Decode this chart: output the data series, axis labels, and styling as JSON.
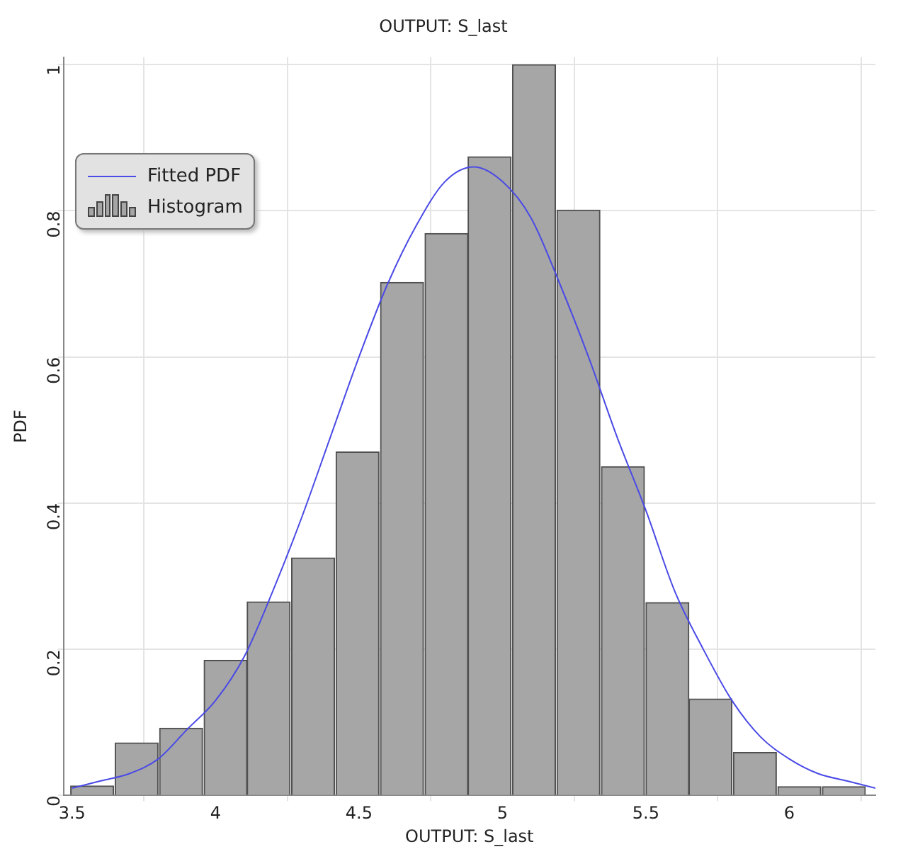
{
  "chart_data": {
    "type": "histogram",
    "title": "OUTPUT: S_last",
    "xlabel": "OUTPUT: S_last",
    "ylabel": "PDF",
    "xlim": [
      3.47,
      6.3
    ],
    "xticks": [
      3.5,
      4,
      4.5,
      5,
      5.5,
      6
    ],
    "ylim": [
      0,
      1.01
    ],
    "yticks": [
      0,
      0.2,
      0.4,
      0.6,
      0.8,
      1
    ],
    "grid": true,
    "legend": "top left",
    "bins": [
      3.49,
      3.65,
      3.8,
      3.96,
      4.11,
      4.26,
      4.42,
      4.57,
      4.73,
      4.88,
      5.03,
      5.19,
      5.34,
      5.5,
      5.65,
      5.8,
      5.96,
      6.11,
      6.27
    ],
    "series": [
      {
        "name": "Fitted PDF",
        "type": "line",
        "color": "#4a4ae6",
        "x": [
          3.5,
          3.6,
          3.7,
          3.8,
          3.9,
          4.0,
          4.1,
          4.2,
          4.3,
          4.4,
          4.5,
          4.6,
          4.7,
          4.8,
          4.9,
          5.0,
          5.1,
          5.2,
          5.3,
          5.4,
          5.5,
          5.6,
          5.7,
          5.8,
          5.9,
          6.0,
          6.1,
          6.2,
          6.3
        ],
        "values": [
          0.01,
          0.02,
          0.03,
          0.05,
          0.09,
          0.13,
          0.19,
          0.28,
          0.38,
          0.49,
          0.6,
          0.7,
          0.78,
          0.84,
          0.86,
          0.84,
          0.79,
          0.7,
          0.6,
          0.49,
          0.39,
          0.28,
          0.2,
          0.13,
          0.08,
          0.05,
          0.03,
          0.02,
          0.01
        ]
      },
      {
        "name": "Histogram",
        "color": "#a6a6a6",
        "values": [
          0.013,
          0.072,
          0.092,
          0.185,
          0.265,
          0.325,
          0.47,
          0.702,
          0.769,
          0.874,
          1.0,
          0.801,
          0.45,
          0.264,
          0.132,
          0.059,
          0.012,
          0.012
        ]
      }
    ]
  }
}
